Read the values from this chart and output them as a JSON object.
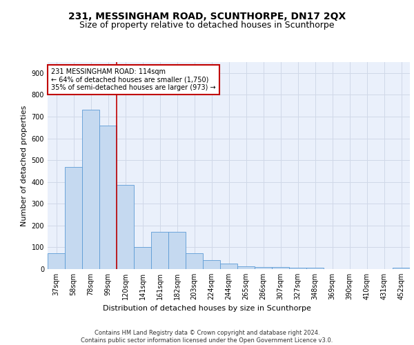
{
  "title": "231, MESSINGHAM ROAD, SCUNTHORPE, DN17 2QX",
  "subtitle": "Size of property relative to detached houses in Scunthorpe",
  "xlabel": "Distribution of detached houses by size in Scunthorpe",
  "ylabel": "Number of detached properties",
  "categories": [
    "37sqm",
    "58sqm",
    "78sqm",
    "99sqm",
    "120sqm",
    "141sqm",
    "161sqm",
    "182sqm",
    "203sqm",
    "224sqm",
    "244sqm",
    "265sqm",
    "286sqm",
    "307sqm",
    "327sqm",
    "348sqm",
    "369sqm",
    "390sqm",
    "410sqm",
    "431sqm",
    "452sqm"
  ],
  "values": [
    72,
    470,
    730,
    660,
    385,
    100,
    170,
    170,
    72,
    42,
    25,
    12,
    10,
    10,
    5,
    5,
    0,
    0,
    0,
    0,
    5
  ],
  "bar_color": "#c5d9f0",
  "bar_edge_color": "#5b9bd5",
  "vline_x_index": 3.5,
  "vline_color": "#c00000",
  "annotation_text": "231 MESSINGHAM ROAD: 114sqm\n← 64% of detached houses are smaller (1,750)\n35% of semi-detached houses are larger (973) →",
  "annotation_box_color": "white",
  "annotation_box_edge": "#c00000",
  "ylim": [
    0,
    950
  ],
  "yticks": [
    0,
    100,
    200,
    300,
    400,
    500,
    600,
    700,
    800,
    900
  ],
  "grid_color": "#d0d8e8",
  "footer": "Contains HM Land Registry data © Crown copyright and database right 2024.\nContains public sector information licensed under the Open Government Licence v3.0.",
  "bg_color": "#eaf0fb",
  "title_fontsize": 10,
  "subtitle_fontsize": 9,
  "tick_fontsize": 7,
  "label_fontsize": 8,
  "annotation_fontsize": 7,
  "footer_fontsize": 6
}
